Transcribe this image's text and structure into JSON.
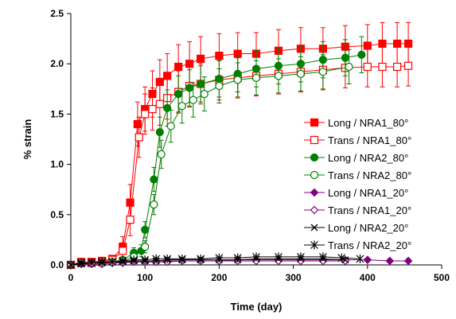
{
  "chart_data": {
    "type": "line",
    "title": "",
    "xlabel": "Time (day)",
    "ylabel": "% strain",
    "xlim": [
      0,
      500
    ],
    "ylim": [
      0,
      2.5
    ],
    "xticks": [
      "0",
      "100",
      "200",
      "300",
      "400",
      "500"
    ],
    "yticks": [
      "0.0",
      "0.5",
      "1.0",
      "1.5",
      "2.0",
      "2.5"
    ],
    "grid": false,
    "legend_position": "right",
    "series": [
      {
        "name": "Long / NRA1_80°",
        "color": "#ff0000",
        "marker": "square-filled",
        "x": [
          0,
          14,
          28,
          42,
          56,
          70,
          80,
          90,
          100,
          110,
          120,
          130,
          145,
          160,
          175,
          200,
          225,
          250,
          280,
          310,
          340,
          370,
          400,
          420,
          440,
          455
        ],
        "y": [
          0.0,
          0.03,
          0.03,
          0.04,
          0.06,
          0.18,
          0.62,
          1.4,
          1.55,
          1.7,
          1.82,
          1.88,
          1.97,
          2.0,
          2.05,
          2.08,
          2.1,
          2.1,
          2.13,
          2.15,
          2.15,
          2.17,
          2.18,
          2.2,
          2.2,
          2.2
        ],
        "error": [
          0,
          0,
          0,
          0,
          0,
          0.1,
          0.18,
          0.22,
          0.22,
          0.23,
          0.22,
          0.22,
          0.22,
          0.22,
          0.22,
          0.22,
          0.21,
          0.21,
          0.21,
          0.21,
          0.21,
          0.21,
          0.21,
          0.21,
          0.21,
          0.21
        ]
      },
      {
        "name": "Trans / NRA1_80°",
        "color": "#ff0000",
        "marker": "square-open",
        "x": [
          0,
          14,
          28,
          42,
          56,
          70,
          80,
          92,
          100,
          110,
          120,
          130,
          145,
          160,
          175,
          200,
          225,
          250,
          280,
          310,
          340,
          370,
          400,
          420,
          440,
          455
        ],
        "y": [
          0.0,
          0.02,
          0.02,
          0.03,
          0.05,
          0.14,
          0.45,
          1.27,
          1.5,
          1.55,
          1.6,
          1.66,
          1.72,
          1.78,
          1.8,
          1.84,
          1.86,
          1.88,
          1.9,
          1.92,
          1.94,
          1.96,
          1.97,
          1.97,
          1.97,
          1.98
        ],
        "error": [
          0,
          0,
          0,
          0,
          0,
          0.08,
          0.16,
          0.2,
          0.2,
          0.21,
          0.21,
          0.21,
          0.21,
          0.21,
          0.2,
          0.2,
          0.2,
          0.2,
          0.2,
          0.2,
          0.2,
          0.2,
          0.2,
          0.2,
          0.2,
          0.2
        ]
      },
      {
        "name": "Long / NRA2_80°",
        "color": "#008000",
        "marker": "circle-filled",
        "x": [
          0,
          14,
          28,
          42,
          56,
          70,
          85,
          95,
          100,
          112,
          120,
          130,
          145,
          160,
          175,
          200,
          225,
          250,
          280,
          310,
          340,
          370,
          392
        ],
        "y": [
          0.0,
          0.02,
          0.02,
          0.02,
          0.03,
          0.05,
          0.12,
          0.14,
          0.35,
          0.85,
          1.32,
          1.56,
          1.7,
          1.76,
          1.8,
          1.85,
          1.9,
          1.95,
          1.98,
          2.0,
          2.04,
          2.06,
          2.09
        ],
        "error": [
          0,
          0,
          0,
          0,
          0,
          0,
          0.05,
          0.06,
          0.08,
          0.12,
          0.15,
          0.18,
          0.18,
          0.18,
          0.18,
          0.18,
          0.18,
          0.18,
          0.18,
          0.18,
          0.18,
          0.18,
          0.18
        ]
      },
      {
        "name": "Trans / NRA2_80°",
        "color": "#008000",
        "marker": "circle-open",
        "x": [
          0,
          14,
          28,
          42,
          56,
          70,
          85,
          100,
          112,
          122,
          135,
          150,
          165,
          180,
          200,
          225,
          250,
          280,
          310,
          340,
          375
        ],
        "y": [
          0.0,
          0.02,
          0.02,
          0.02,
          0.03,
          0.04,
          0.08,
          0.18,
          0.6,
          1.1,
          1.38,
          1.58,
          1.64,
          1.7,
          1.78,
          1.84,
          1.86,
          1.88,
          1.9,
          1.92,
          1.97
        ],
        "error": [
          0,
          0,
          0,
          0,
          0,
          0,
          0.04,
          0.06,
          0.1,
          0.14,
          0.16,
          0.17,
          0.17,
          0.17,
          0.17,
          0.17,
          0.17,
          0.17,
          0.17,
          0.17,
          0.17
        ]
      },
      {
        "name": "Long / NRA1_20°",
        "color": "#800080",
        "marker": "diamond-filled",
        "x": [
          0,
          14,
          28,
          42,
          56,
          70,
          85,
          100,
          115,
          130,
          150,
          175,
          200,
          225,
          250,
          280,
          310,
          340,
          370,
          400,
          430,
          455
        ],
        "y": [
          0.0,
          0.01,
          0.02,
          0.02,
          0.02,
          0.03,
          0.03,
          0.03,
          0.04,
          0.04,
          0.04,
          0.04,
          0.04,
          0.05,
          0.05,
          0.05,
          0.05,
          0.05,
          0.05,
          0.05,
          0.04,
          0.04
        ]
      },
      {
        "name": "Trans / NRA1_20°",
        "color": "#800080",
        "marker": "diamond-open",
        "x": [
          0,
          14,
          28,
          42,
          56,
          70,
          85,
          100,
          115,
          130,
          150,
          175,
          200,
          225,
          250,
          280,
          310,
          340,
          370
        ],
        "y": [
          0.0,
          0.01,
          0.01,
          0.01,
          0.02,
          0.02,
          0.03,
          0.03,
          0.03,
          0.03,
          0.04,
          0.04,
          0.04,
          0.04,
          0.04,
          0.04,
          0.04,
          0.04,
          0.04
        ]
      },
      {
        "name": "Long / NRA2_20°",
        "color": "#000000",
        "marker": "x",
        "x": [
          0,
          14,
          28,
          42,
          56,
          70,
          85,
          100,
          115,
          130,
          150,
          175,
          200,
          225,
          250,
          280,
          310,
          340,
          370
        ],
        "y": [
          0.0,
          0.01,
          0.02,
          0.02,
          0.03,
          0.03,
          0.04,
          0.04,
          0.04,
          0.05,
          0.05,
          0.05,
          0.05,
          0.05,
          0.06,
          0.06,
          0.06,
          0.06,
          0.05
        ]
      },
      {
        "name": "Trans / NRA2_20°",
        "color": "#000000",
        "marker": "asterisk",
        "x": [
          0,
          14,
          28,
          42,
          56,
          70,
          85,
          100,
          115,
          130,
          150,
          175,
          200,
          225,
          250,
          280,
          310,
          340,
          365,
          390
        ],
        "y": [
          0.0,
          0.02,
          0.02,
          0.03,
          0.03,
          0.04,
          0.05,
          0.05,
          0.06,
          0.06,
          0.06,
          0.06,
          0.07,
          0.07,
          0.08,
          0.08,
          0.08,
          0.08,
          0.07,
          0.06
        ]
      }
    ]
  }
}
